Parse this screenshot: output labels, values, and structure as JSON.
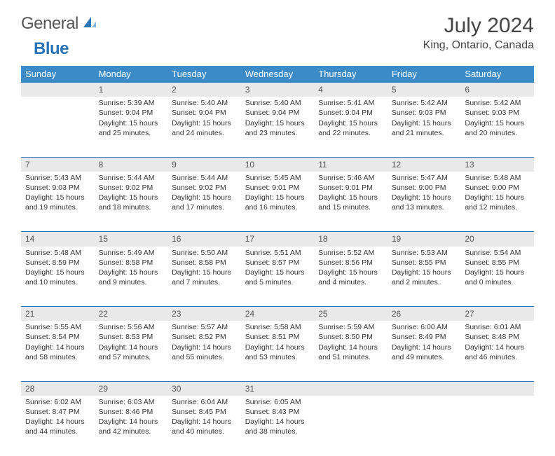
{
  "logo": {
    "word1": "General",
    "word2": "Blue"
  },
  "header": {
    "title": "July 2024",
    "location": "King, Ontario, Canada"
  },
  "colors": {
    "header_bg": "#3b8bc9",
    "accent": "#2a74b8",
    "daynum_bg": "#e9e9e9",
    "text": "#333333"
  },
  "weekdays": [
    "Sunday",
    "Monday",
    "Tuesday",
    "Wednesday",
    "Thursday",
    "Friday",
    "Saturday"
  ],
  "weeks": [
    [
      null,
      {
        "n": "1",
        "sunrise": "5:39 AM",
        "sunset": "9:04 PM",
        "day_h": "15",
        "day_m": "25"
      },
      {
        "n": "2",
        "sunrise": "5:40 AM",
        "sunset": "9:04 PM",
        "day_h": "15",
        "day_m": "24"
      },
      {
        "n": "3",
        "sunrise": "5:40 AM",
        "sunset": "9:04 PM",
        "day_h": "15",
        "day_m": "23"
      },
      {
        "n": "4",
        "sunrise": "5:41 AM",
        "sunset": "9:04 PM",
        "day_h": "15",
        "day_m": "22"
      },
      {
        "n": "5",
        "sunrise": "5:42 AM",
        "sunset": "9:03 PM",
        "day_h": "15",
        "day_m": "21"
      },
      {
        "n": "6",
        "sunrise": "5:42 AM",
        "sunset": "9:03 PM",
        "day_h": "15",
        "day_m": "20"
      }
    ],
    [
      {
        "n": "7",
        "sunrise": "5:43 AM",
        "sunset": "9:03 PM",
        "day_h": "15",
        "day_m": "19"
      },
      {
        "n": "8",
        "sunrise": "5:44 AM",
        "sunset": "9:02 PM",
        "day_h": "15",
        "day_m": "18"
      },
      {
        "n": "9",
        "sunrise": "5:44 AM",
        "sunset": "9:02 PM",
        "day_h": "15",
        "day_m": "17"
      },
      {
        "n": "10",
        "sunrise": "5:45 AM",
        "sunset": "9:01 PM",
        "day_h": "15",
        "day_m": "16"
      },
      {
        "n": "11",
        "sunrise": "5:46 AM",
        "sunset": "9:01 PM",
        "day_h": "15",
        "day_m": "15"
      },
      {
        "n": "12",
        "sunrise": "5:47 AM",
        "sunset": "9:00 PM",
        "day_h": "15",
        "day_m": "13"
      },
      {
        "n": "13",
        "sunrise": "5:48 AM",
        "sunset": "9:00 PM",
        "day_h": "15",
        "day_m": "12"
      }
    ],
    [
      {
        "n": "14",
        "sunrise": "5:48 AM",
        "sunset": "8:59 PM",
        "day_h": "15",
        "day_m": "10"
      },
      {
        "n": "15",
        "sunrise": "5:49 AM",
        "sunset": "8:58 PM",
        "day_h": "15",
        "day_m": "9"
      },
      {
        "n": "16",
        "sunrise": "5:50 AM",
        "sunset": "8:58 PM",
        "day_h": "15",
        "day_m": "7"
      },
      {
        "n": "17",
        "sunrise": "5:51 AM",
        "sunset": "8:57 PM",
        "day_h": "15",
        "day_m": "5"
      },
      {
        "n": "18",
        "sunrise": "5:52 AM",
        "sunset": "8:56 PM",
        "day_h": "15",
        "day_m": "4"
      },
      {
        "n": "19",
        "sunrise": "5:53 AM",
        "sunset": "8:55 PM",
        "day_h": "15",
        "day_m": "2"
      },
      {
        "n": "20",
        "sunrise": "5:54 AM",
        "sunset": "8:55 PM",
        "day_h": "15",
        "day_m": "0"
      }
    ],
    [
      {
        "n": "21",
        "sunrise": "5:55 AM",
        "sunset": "8:54 PM",
        "day_h": "14",
        "day_m": "58"
      },
      {
        "n": "22",
        "sunrise": "5:56 AM",
        "sunset": "8:53 PM",
        "day_h": "14",
        "day_m": "57"
      },
      {
        "n": "23",
        "sunrise": "5:57 AM",
        "sunset": "8:52 PM",
        "day_h": "14",
        "day_m": "55"
      },
      {
        "n": "24",
        "sunrise": "5:58 AM",
        "sunset": "8:51 PM",
        "day_h": "14",
        "day_m": "53"
      },
      {
        "n": "25",
        "sunrise": "5:59 AM",
        "sunset": "8:50 PM",
        "day_h": "14",
        "day_m": "51"
      },
      {
        "n": "26",
        "sunrise": "6:00 AM",
        "sunset": "8:49 PM",
        "day_h": "14",
        "day_m": "49"
      },
      {
        "n": "27",
        "sunrise": "6:01 AM",
        "sunset": "8:48 PM",
        "day_h": "14",
        "day_m": "46"
      }
    ],
    [
      {
        "n": "28",
        "sunrise": "6:02 AM",
        "sunset": "8:47 PM",
        "day_h": "14",
        "day_m": "44"
      },
      {
        "n": "29",
        "sunrise": "6:03 AM",
        "sunset": "8:46 PM",
        "day_h": "14",
        "day_m": "42"
      },
      {
        "n": "30",
        "sunrise": "6:04 AM",
        "sunset": "8:45 PM",
        "day_h": "14",
        "day_m": "40"
      },
      {
        "n": "31",
        "sunrise": "6:05 AM",
        "sunset": "8:43 PM",
        "day_h": "14",
        "day_m": "38"
      },
      null,
      null,
      null
    ]
  ]
}
